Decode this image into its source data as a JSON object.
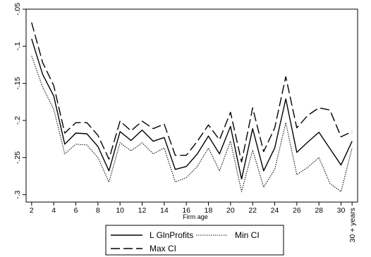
{
  "chart_data": {
    "type": "line",
    "xlabel": "Firm age",
    "ylabel": "",
    "xlim": [
      1.5,
      31.5
    ],
    "ylim": [
      -0.31,
      -0.05
    ],
    "x": [
      2,
      3,
      4,
      5,
      6,
      7,
      8,
      9,
      10,
      11,
      12,
      13,
      14,
      15,
      16,
      17,
      18,
      19,
      20,
      21,
      22,
      23,
      24,
      25,
      26,
      27,
      28,
      29,
      30,
      31
    ],
    "x_ticks": [
      2,
      4,
      6,
      8,
      10,
      12,
      14,
      16,
      18,
      20,
      22,
      24,
      26,
      28,
      30
    ],
    "x_tick_labels": [
      "2",
      "4",
      "6",
      "8",
      "10",
      "12",
      "14",
      "16",
      "18",
      "20",
      "22",
      "24",
      "26",
      "28",
      "30"
    ],
    "x_extra_tick": {
      "value": 31,
      "label": "30 + years"
    },
    "y_ticks": [
      -0.3,
      -0.25,
      -0.2,
      -0.15,
      -0.1,
      -0.05
    ],
    "y_tick_labels": [
      "-.3",
      "-.25",
      "-.2",
      "-.15",
      "-.1",
      "-.05"
    ],
    "grid": false,
    "legend_position": "bottom-center",
    "series": [
      {
        "name": "L GlnProfits",
        "style": "solid",
        "color": "#000000",
        "values": [
          -0.09,
          -0.138,
          -0.167,
          -0.232,
          -0.217,
          -0.218,
          -0.235,
          -0.268,
          -0.215,
          -0.227,
          -0.213,
          -0.228,
          -0.223,
          -0.266,
          -0.262,
          -0.245,
          -0.221,
          -0.245,
          -0.208,
          -0.279,
          -0.211,
          -0.268,
          -0.237,
          -0.171,
          -0.243,
          -0.229,
          -0.216,
          -0.238,
          -0.26,
          -0.228
        ]
      },
      {
        "name": "Min CI",
        "style": "dotted",
        "color": "#000000",
        "values": [
          -0.113,
          -0.155,
          -0.185,
          -0.245,
          -0.232,
          -0.233,
          -0.25,
          -0.283,
          -0.23,
          -0.241,
          -0.23,
          -0.245,
          -0.237,
          -0.283,
          -0.277,
          -0.262,
          -0.237,
          -0.268,
          -0.228,
          -0.296,
          -0.24,
          -0.29,
          -0.266,
          -0.203,
          -0.273,
          -0.263,
          -0.25,
          -0.285,
          -0.296,
          -0.237
        ]
      },
      {
        "name": "Max CI",
        "style": "dashed",
        "color": "#000000",
        "values": [
          -0.068,
          -0.122,
          -0.153,
          -0.217,
          -0.203,
          -0.203,
          -0.22,
          -0.252,
          -0.201,
          -0.214,
          -0.201,
          -0.211,
          -0.205,
          -0.247,
          -0.247,
          -0.228,
          -0.206,
          -0.226,
          -0.189,
          -0.256,
          -0.183,
          -0.242,
          -0.21,
          -0.141,
          -0.21,
          -0.193,
          -0.183,
          -0.186,
          -0.222,
          -0.215
        ]
      }
    ]
  }
}
